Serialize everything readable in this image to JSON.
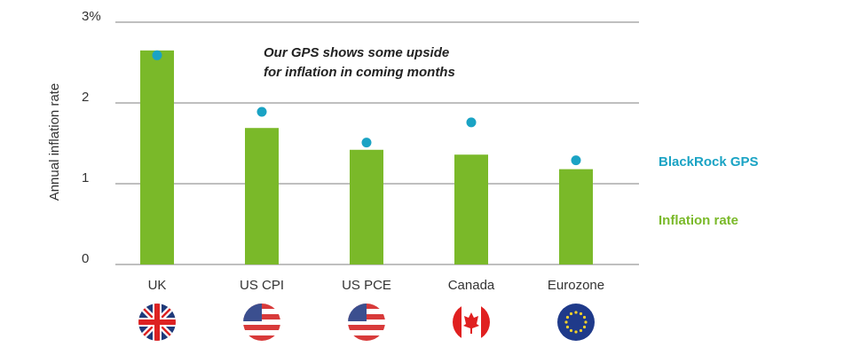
{
  "chart_data": {
    "type": "bar",
    "y_label": "Annual inflation rate",
    "annotation": [
      "Our GPS shows some upside",
      "for inflation in coming months"
    ],
    "categories": [
      "UK",
      "US CPI",
      "US PCE",
      "Canada",
      "Eurozone"
    ],
    "series": [
      {
        "name": "Inflation rate",
        "color": "#7ab929",
        "kind": "bar",
        "values": [
          2.65,
          1.69,
          1.42,
          1.36,
          1.18
        ]
      },
      {
        "name": "BlackRock GPS",
        "color": "#1aa3c4",
        "kind": "dot",
        "values": [
          2.59,
          1.89,
          1.51,
          1.76,
          1.29
        ]
      }
    ],
    "ylim": [
      0,
      3
    ],
    "yticks": [
      0,
      1,
      2,
      {
        "value": 3,
        "label": "3%"
      }
    ],
    "grid": true
  }
}
